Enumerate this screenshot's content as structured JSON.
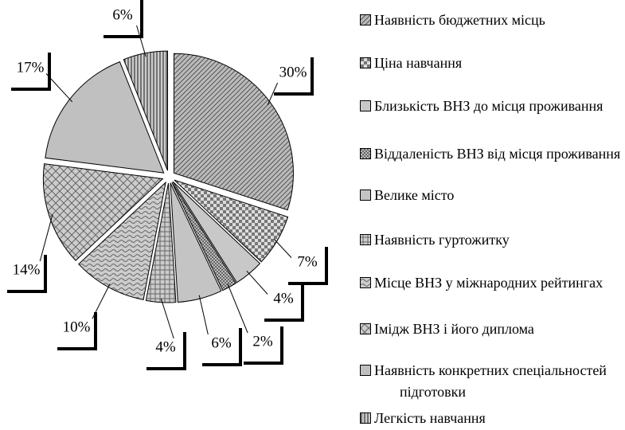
{
  "chart_data": {
    "type": "pie",
    "categories": [
      "Наявність бюджетних місць",
      "Ціна навчання",
      "Близькість ВНЗ до місця проживання",
      "Віддаленість ВНЗ від місця проживання",
      "Велике місто",
      "Наявність гуртожитку",
      "Місце ВНЗ у міжнародних рейтингах",
      "Імідж ВНЗ і його диплома",
      "Наявність конкретних спеціальностей підготовки",
      "Легкість навчання"
    ],
    "values": [
      30,
      7,
      4,
      2,
      6,
      4,
      10,
      14,
      17,
      6
    ],
    "value_labels": [
      "30%",
      "7%",
      "4%",
      "2%",
      "6%",
      "4%",
      "10%",
      "14%",
      "17%",
      "6%"
    ],
    "legend": "right"
  }
}
